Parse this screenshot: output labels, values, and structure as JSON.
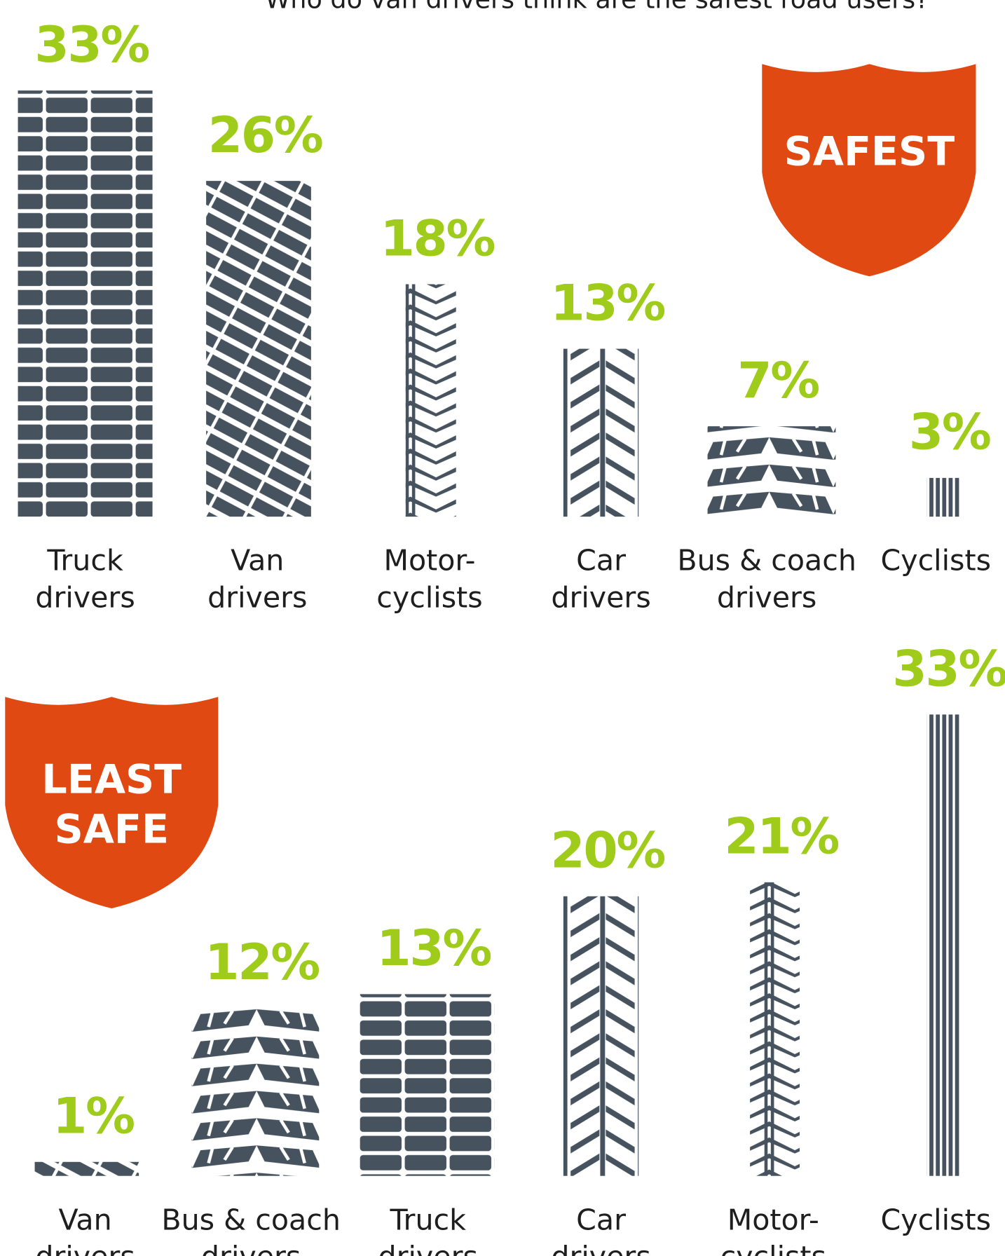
{
  "chart_data": [
    {
      "type": "bar",
      "title": "Who do van drivers think are the safest road users?",
      "badge": [
        "SAFEST"
      ],
      "categories": [
        [
          "Truck",
          "drivers"
        ],
        [
          "Van",
          "drivers"
        ],
        [
          "Motor-",
          "cyclists"
        ],
        [
          "Car",
          "drivers"
        ],
        [
          "Bus & coach",
          "drivers"
        ],
        [
          "Cyclists"
        ]
      ],
      "values": [
        33,
        26,
        18,
        13,
        7,
        3
      ],
      "value_labels": [
        "33%",
        "26%",
        "18%",
        "13%",
        "7%",
        "3%"
      ],
      "color": "#46535e",
      "ylim": [
        0,
        33
      ]
    },
    {
      "type": "bar",
      "badge": [
        "LEAST",
        "SAFE"
      ],
      "categories": [
        [
          "Van",
          "drivers"
        ],
        [
          "Bus & coach",
          "drivers"
        ],
        [
          "Truck",
          "drivers"
        ],
        [
          "Car",
          "drivers"
        ],
        [
          "Motor-",
          "cyclists"
        ],
        [
          "Cyclists"
        ]
      ],
      "values": [
        1,
        12,
        13,
        20,
        21,
        33
      ],
      "value_labels": [
        "1%",
        "12%",
        "13%",
        "20%",
        "21%",
        "33%"
      ],
      "color": "#46535e",
      "ylim": [
        0,
        33
      ]
    }
  ]
}
